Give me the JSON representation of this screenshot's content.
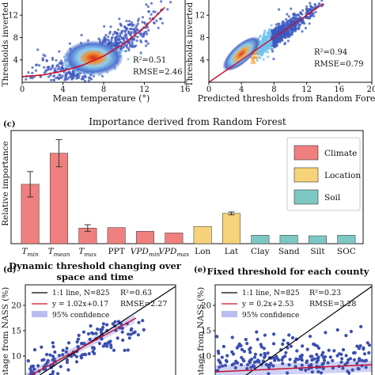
{
  "panels": {
    "a": {
      "xlabel": "Mean temperature (°)",
      "ylabel": "Thresholds inverted fr",
      "r2": "R²=0.51",
      "rmse": "RMSE=2.46",
      "xticks": [
        "0",
        "4",
        "8",
        "12",
        "16"
      ],
      "yticks": [
        "4",
        "8",
        "12"
      ]
    },
    "b": {
      "xlabel": "Predicted thresholds from Random Forest",
      "ylabel": "Thresholds inverted fr",
      "r2": "R²=0.94",
      "rmse": "RMSE=0.79",
      "xticks": [
        "0",
        "4",
        "8",
        "12",
        "16",
        "20"
      ],
      "yticks": [
        "4",
        "8",
        "12"
      ]
    },
    "c": {
      "letter": "(c)",
      "title": "Importance derived from Random Forest",
      "ylabel": "Relative importance"
    },
    "d": {
      "letter": "(d)",
      "title_line1": "Dynamic threshold changing over",
      "title_line2": "space and time",
      "ylabel": "ntage from NASS (%)",
      "legend": [
        "1:1 line, N=825",
        "y = 1.02x+0.17",
        "95% confidence"
      ],
      "r2": "R²=0.63",
      "rmse": "RMSE=2.27",
      "yticks": [
        "10",
        "15",
        "20"
      ]
    },
    "e": {
      "letter": "(e)",
      "title": "Fixed threshold for each county",
      "ylabel": "ntage from NASS (%)",
      "legend": [
        "1:1 line, N=825",
        "y = 0.2x+2.53",
        "95% confidence"
      ],
      "r2": "R²=0.23",
      "rmse": "RMSE=3.28",
      "yticks": [
        "10",
        "15",
        "20"
      ]
    }
  },
  "colors": {
    "climate": "#f08080",
    "location": "#f6d27a",
    "soil": "#7ec8c4",
    "fit_line": "#c8102e",
    "identity_line": "#000000",
    "scatter_point": "#3a4fb0",
    "confidence_band": "#b9bef0"
  },
  "chart_data": [
    {
      "panel": "a",
      "type": "scatter",
      "xlabel": "Mean temperature (°)",
      "ylabel": "Thresholds inverted fr",
      "xlim": [
        0,
        16
      ],
      "ylim": [
        0,
        15
      ],
      "annotations": [
        "R²=0.51",
        "RMSE=2.46"
      ],
      "fit_curve": {
        "x": [
          0,
          2,
          4,
          6,
          8,
          10,
          12,
          14
        ],
        "y": [
          1.0,
          1.3,
          2.0,
          3.1,
          4.7,
          6.9,
          9.8,
          13.4
        ]
      }
    },
    {
      "panel": "b",
      "type": "scatter",
      "xlabel": "Predicted thresholds from Random Forest",
      "ylabel": "Thresholds inverted fr",
      "xlim": [
        0,
        20
      ],
      "ylim": [
        0,
        15
      ],
      "annotations": [
        "R²=0.94",
        "RMSE=0.79"
      ],
      "fit_line": {
        "x": [
          0,
          14
        ],
        "y": [
          0,
          14
        ]
      }
    },
    {
      "panel": "c",
      "type": "bar",
      "title": "Importance derived from Random Forest",
      "ylabel": "Relative importance",
      "ylim": [
        0,
        0.4
      ],
      "legend_position": "right",
      "groups": [
        "Climate",
        "Location",
        "Soil"
      ],
      "categories": [
        "T_min",
        "T_mean",
        "T_max",
        "PPT",
        "VPD_min",
        "VPD_max",
        "Lon",
        "Lat",
        "Clay",
        "Sand",
        "Silt",
        "SOC"
      ],
      "values": [
        0.21,
        0.32,
        0.055,
        0.057,
        0.044,
        0.038,
        0.061,
        0.107,
        0.03,
        0.03,
        0.028,
        0.03
      ],
      "errors": [
        0.045,
        0.048,
        0.012,
        0.0,
        0.0,
        0.0,
        0.0,
        0.005,
        0.0,
        0.0,
        0.0,
        0.0
      ],
      "category_group": [
        "Climate",
        "Climate",
        "Climate",
        "Climate",
        "Climate",
        "Climate",
        "Location",
        "Location",
        "Soil",
        "Soil",
        "Soil",
        "Soil"
      ]
    },
    {
      "panel": "d",
      "type": "scatter",
      "ylabel": "ntage from NASS (%)",
      "legend": [
        "1:1 line, N=825",
        "y = 1.02x+0.17",
        "95% confidence"
      ],
      "annotations": [
        "R²=0.63",
        "RMSE=2.27"
      ]
    },
    {
      "panel": "e",
      "type": "scatter",
      "ylabel": "ntage from NASS (%)",
      "legend": [
        "1:1 line, N=825",
        "y = 0.2x+2.53",
        "95% confidence"
      ],
      "annotations": [
        "R²=0.23",
        "RMSE=3.28"
      ]
    }
  ]
}
